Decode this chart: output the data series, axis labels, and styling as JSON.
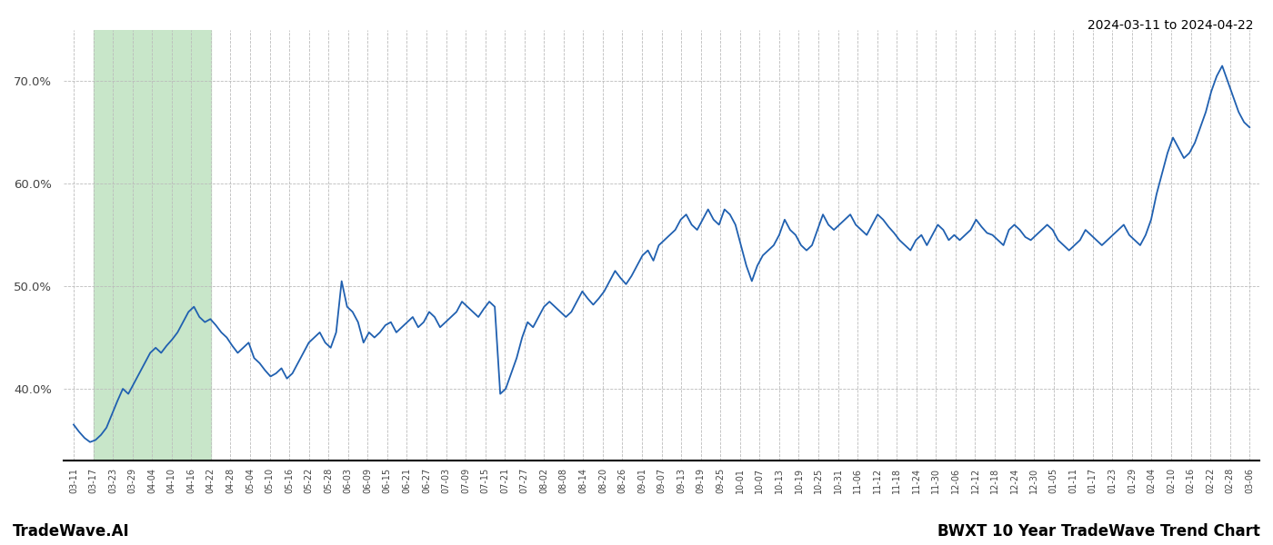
{
  "title_right": "2024-03-11 to 2024-04-22",
  "footer_left": "TradeWave.AI",
  "footer_right": "BWXT 10 Year TradeWave Trend Chart",
  "y_ticks": [
    40.0,
    50.0,
    60.0,
    70.0
  ],
  "ylim": [
    33.0,
    75.0
  ],
  "line_color": "#2060b0",
  "highlight_color": "#c8e6c9",
  "background_color": "#ffffff",
  "grid_color": "#bbbbbb",
  "x_labels": [
    "03-11",
    "03-17",
    "03-23",
    "03-29",
    "04-04",
    "04-10",
    "04-16",
    "04-22",
    "04-28",
    "05-04",
    "05-10",
    "05-16",
    "05-22",
    "05-28",
    "06-03",
    "06-09",
    "06-15",
    "06-21",
    "06-27",
    "07-03",
    "07-09",
    "07-15",
    "07-21",
    "07-27",
    "08-02",
    "08-08",
    "08-14",
    "08-20",
    "08-26",
    "09-01",
    "09-07",
    "09-13",
    "09-19",
    "09-25",
    "10-01",
    "10-07",
    "10-13",
    "10-19",
    "10-25",
    "10-31",
    "11-06",
    "11-12",
    "11-18",
    "11-24",
    "11-30",
    "12-06",
    "12-12",
    "12-18",
    "12-24",
    "12-30",
    "01-05",
    "01-11",
    "01-17",
    "01-23",
    "01-29",
    "02-04",
    "02-10",
    "02-16",
    "02-22",
    "02-28",
    "03-06"
  ],
  "highlight_start_label": "03-17",
  "highlight_end_label": "04-22",
  "values": [
    36.5,
    35.8,
    35.2,
    34.8,
    35.0,
    35.5,
    36.2,
    37.5,
    38.8,
    40.0,
    39.5,
    40.5,
    41.5,
    42.5,
    43.5,
    44.0,
    43.5,
    44.2,
    44.8,
    45.5,
    46.5,
    47.5,
    48.0,
    47.0,
    46.5,
    46.8,
    46.2,
    45.5,
    45.0,
    44.2,
    43.5,
    44.0,
    44.5,
    43.0,
    42.5,
    41.8,
    41.2,
    41.5,
    42.0,
    41.0,
    41.5,
    42.5,
    43.5,
    44.5,
    45.0,
    45.5,
    44.5,
    44.0,
    45.5,
    50.5,
    48.0,
    47.5,
    46.5,
    44.5,
    45.5,
    45.0,
    45.5,
    46.2,
    46.5,
    45.5,
    46.0,
    46.5,
    47.0,
    46.0,
    46.5,
    47.5,
    47.0,
    46.0,
    46.5,
    47.0,
    47.5,
    48.5,
    48.0,
    47.5,
    47.0,
    47.8,
    48.5,
    48.0,
    39.5,
    40.0,
    41.5,
    43.0,
    45.0,
    46.5,
    46.0,
    47.0,
    48.0,
    48.5,
    48.0,
    47.5,
    47.0,
    47.5,
    48.5,
    49.5,
    48.8,
    48.2,
    48.8,
    49.5,
    50.5,
    51.5,
    50.8,
    50.2,
    51.0,
    52.0,
    53.0,
    53.5,
    52.5,
    54.0,
    54.5,
    55.0,
    55.5,
    56.5,
    57.0,
    56.0,
    55.5,
    56.5,
    57.5,
    56.5,
    56.0,
    57.5,
    57.0,
    56.0,
    54.0,
    52.0,
    50.5,
    52.0,
    53.0,
    53.5,
    54.0,
    55.0,
    56.5,
    55.5,
    55.0,
    54.0,
    53.5,
    54.0,
    55.5,
    57.0,
    56.0,
    55.5,
    56.0,
    56.5,
    57.0,
    56.0,
    55.5,
    55.0,
    56.0,
    57.0,
    56.5,
    55.8,
    55.2,
    54.5,
    54.0,
    53.5,
    54.5,
    55.0,
    54.0,
    55.0,
    56.0,
    55.5,
    54.5,
    55.0,
    54.5,
    55.0,
    55.5,
    56.5,
    55.8,
    55.2,
    55.0,
    54.5,
    54.0,
    55.5,
    56.0,
    55.5,
    54.8,
    54.5,
    55.0,
    55.5,
    56.0,
    55.5,
    54.5,
    54.0,
    53.5,
    54.0,
    54.5,
    55.5,
    55.0,
    54.5,
    54.0,
    54.5,
    55.0,
    55.5,
    56.0,
    55.0,
    54.5,
    54.0,
    55.0,
    56.5,
    59.0,
    61.0,
    63.0,
    64.5,
    63.5,
    62.5,
    63.0,
    64.0,
    65.5,
    67.0,
    69.0,
    70.5,
    71.5,
    70.0,
    68.5,
    67.0,
    66.0,
    65.5
  ]
}
